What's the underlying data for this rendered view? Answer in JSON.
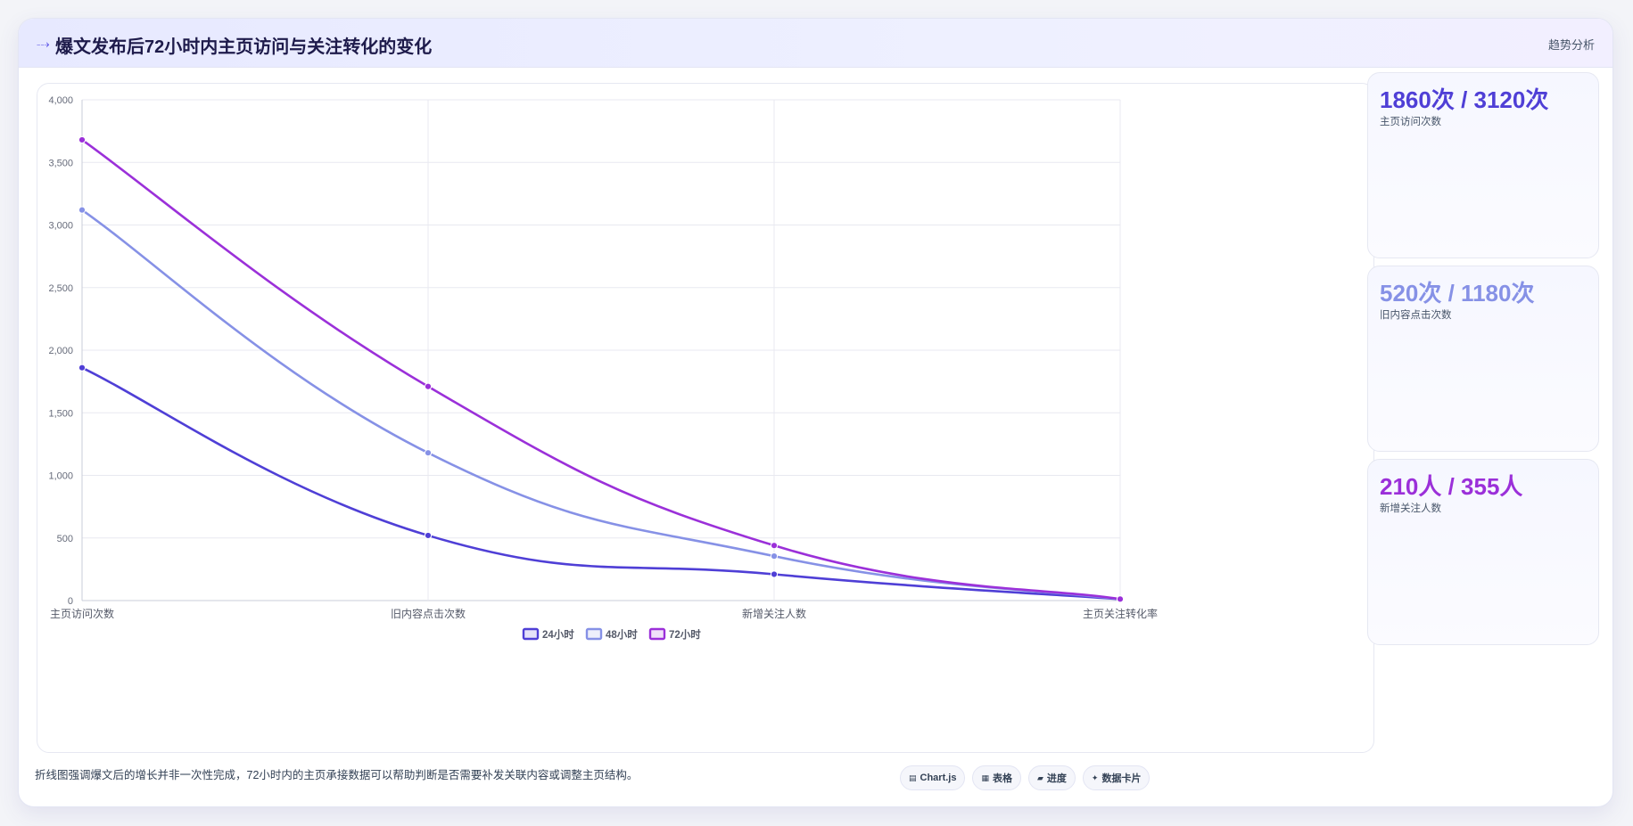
{
  "header": {
    "icon": "comet-icon",
    "title": "爆文发布后72小时内主页访问与关注转化的变化",
    "tag": "趋势分析"
  },
  "chart_data": {
    "type": "line",
    "categories": [
      "主页访问次数",
      "旧内容点击次数",
      "新增关注人数",
      "主页关注转化率"
    ],
    "series": [
      {
        "name": "24小时",
        "values": [
          1860,
          520,
          210,
          11.3
        ],
        "color": "#4f3fd6"
      },
      {
        "name": "48小时",
        "values": [
          3120,
          1180,
          355,
          11.4
        ],
        "color": "#8691e6"
      },
      {
        "name": "72小时",
        "values": [
          3680,
          1710,
          440,
          12.0
        ],
        "color": "#9b30d9"
      }
    ],
    "ylim": [
      0,
      4000
    ],
    "yticks": [
      "0",
      "500",
      "1,000",
      "1,500",
      "2,000",
      "2,500",
      "3,000",
      "3,500",
      "4,000"
    ],
    "grid": true,
    "legend": "bottom"
  },
  "stats": [
    {
      "value": "1860次 / 3120次",
      "label": "主页访问次数",
      "color": "#4f3fd6"
    },
    {
      "value": "520次 / 1180次",
      "label": "旧内容点击次数",
      "color": "#8691e6"
    },
    {
      "value": "210人 / 355人",
      "label": "新增关注人数",
      "color": "#9b30d9"
    }
  ],
  "footer": {
    "note": "折线图强调爆文后的增长并非一次性完成，72小时内的主页承接数据可以帮助判断是否需要补发关联内容或调整主页结构。",
    "pills": [
      {
        "icon": "chart-icon",
        "label": "Chart.js"
      },
      {
        "icon": "table-icon",
        "label": "表格"
      },
      {
        "icon": "progress-icon",
        "label": "进度"
      },
      {
        "icon": "card-icon",
        "label": "数据卡片"
      }
    ]
  }
}
